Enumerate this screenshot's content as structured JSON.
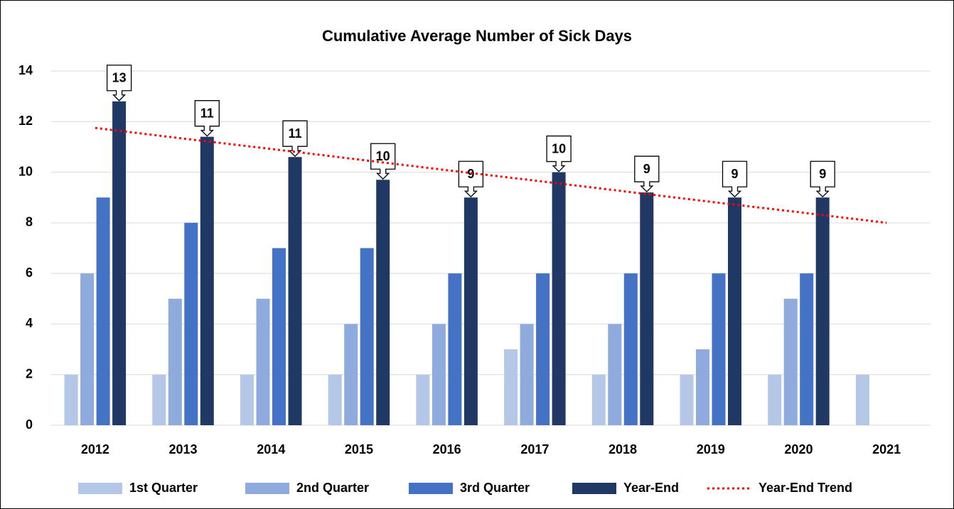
{
  "chart_data": {
    "type": "bar",
    "title": "Cumulative Average Number of Sick Days",
    "categories": [
      "2012",
      "2013",
      "2014",
      "2015",
      "2016",
      "2017",
      "2018",
      "2019",
      "2020",
      "2021"
    ],
    "series": [
      {
        "name": "1st Quarter",
        "color": "#b4c7e7",
        "values": [
          2,
          2,
          2,
          2,
          2,
          3,
          2,
          2,
          2,
          2
        ]
      },
      {
        "name": "2nd Quarter",
        "color": "#8faadc",
        "values": [
          6,
          5,
          5,
          4,
          4,
          4,
          4,
          3,
          5,
          null
        ]
      },
      {
        "name": "3rd Quarter",
        "color": "#4472c4",
        "values": [
          9,
          8,
          7,
          7,
          6,
          6,
          6,
          6,
          6,
          null
        ]
      },
      {
        "name": "Year-End",
        "color": "#203864",
        "values": [
          12.8,
          11.4,
          10.6,
          9.7,
          9,
          10,
          9.2,
          9,
          9,
          null
        ],
        "value_labels": [
          "13",
          "11",
          "11",
          "10",
          "9",
          "10",
          "9",
          "9",
          "9",
          null
        ]
      },
      {
        "name": "Year-End Trend",
        "color": "#ff0000",
        "type": "line",
        "dash": "dotted",
        "values": [
          11.75,
          11.33,
          10.92,
          10.5,
          10.08,
          9.67,
          9.25,
          8.83,
          8.42,
          8.0
        ]
      }
    ],
    "ylim": [
      0,
      14
    ],
    "yticks": [
      0,
      2,
      4,
      6,
      8,
      10,
      12,
      14
    ],
    "grid": true,
    "legend": "bottom"
  }
}
